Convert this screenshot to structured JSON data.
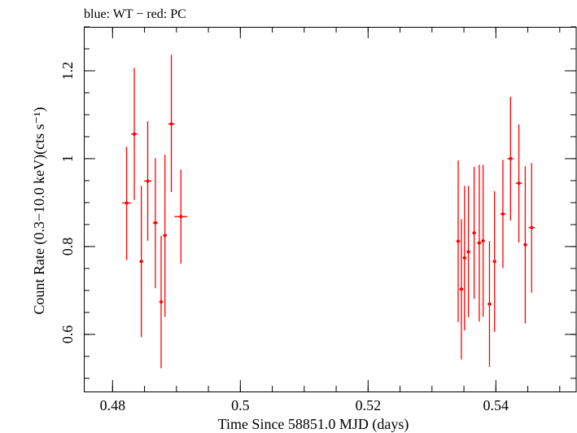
{
  "chart_data": {
    "type": "scatter",
    "title": "blue: WT − red: PC",
    "xlabel": "Time Since 58851.0 MJD (days)",
    "ylabel": "Count Rate (0.3−10.0 keV)(cts s⁻¹)",
    "xlim": [
      0.4755,
      0.5527
    ],
    "ylim": [
      0.47,
      1.3
    ],
    "xticks": [
      {
        "value": 0.48,
        "label": "0.48"
      },
      {
        "value": 0.5,
        "label": "0.5"
      },
      {
        "value": 0.52,
        "label": "0.52"
      },
      {
        "value": 0.54,
        "label": "0.54"
      }
    ],
    "yticks": [
      {
        "value": 0.6,
        "label": "0.6"
      },
      {
        "value": 0.8,
        "label": "0.8"
      },
      {
        "value": 1.0,
        "label": "1"
      },
      {
        "value": 1.2,
        "label": "1.2"
      }
    ],
    "x_minor_step": 0.005,
    "y_minor_step": 0.05,
    "grid": false,
    "colors": {
      "wt": "#0000ff",
      "pc": "#ff0000",
      "axes": "#000000"
    },
    "series": [
      {
        "color": "#ff0000",
        "points": [
          {
            "x": 0.4822,
            "xerr": 0.0007,
            "y": 0.899,
            "yerr_lo": 0.13,
            "yerr_hi": 0.128
          },
          {
            "x": 0.4834,
            "xerr": 0.0005,
            "y": 1.056,
            "yerr_lo": 0.15,
            "yerr_hi": 0.151
          },
          {
            "x": 0.4845,
            "xerr": 0.0003,
            "y": 0.766,
            "yerr_lo": 0.172,
            "yerr_hi": 0.172
          },
          {
            "x": 0.4855,
            "xerr": 0.0006,
            "y": 0.949,
            "yerr_lo": 0.136,
            "yerr_hi": 0.136
          },
          {
            "x": 0.4867,
            "xerr": 0.0004,
            "y": 0.854,
            "yerr_lo": 0.149,
            "yerr_hi": 0.147
          },
          {
            "x": 0.4876,
            "xerr": 0.0003,
            "y": 0.674,
            "yerr_lo": 0.151,
            "yerr_hi": 0.15
          },
          {
            "x": 0.4882,
            "xerr": 0.0003,
            "y": 0.825,
            "yerr_lo": 0.185,
            "yerr_hi": 0.184
          },
          {
            "x": 0.4892,
            "xerr": 0.0005,
            "y": 1.079,
            "yerr_lo": 0.155,
            "yerr_hi": 0.157
          },
          {
            "x": 0.4907,
            "xerr": 0.001,
            "y": 0.868,
            "yerr_lo": 0.107,
            "yerr_hi": 0.107
          },
          {
            "x": 0.5341,
            "xerr": 0.0003,
            "y": 0.812,
            "yerr_lo": 0.184,
            "yerr_hi": 0.184
          },
          {
            "x": 0.5346,
            "xerr": 0.0003,
            "y": 0.703,
            "yerr_lo": 0.16,
            "yerr_hi": 0.159
          },
          {
            "x": 0.5351,
            "xerr": 0.0003,
            "y": 0.774,
            "yerr_lo": 0.165,
            "yerr_hi": 0.164
          },
          {
            "x": 0.5357,
            "xerr": 0.0003,
            "y": 0.788,
            "yerr_lo": 0.149,
            "yerr_hi": 0.15
          },
          {
            "x": 0.5366,
            "xerr": 0.0003,
            "y": 0.831,
            "yerr_lo": 0.15,
            "yerr_hi": 0.15
          },
          {
            "x": 0.5374,
            "xerr": 0.0003,
            "y": 0.808,
            "yerr_lo": 0.179,
            "yerr_hi": 0.178
          },
          {
            "x": 0.538,
            "xerr": 0.0003,
            "y": 0.813,
            "yerr_lo": 0.173,
            "yerr_hi": 0.173
          },
          {
            "x": 0.539,
            "xerr": 0.0003,
            "y": 0.669,
            "yerr_lo": 0.143,
            "yerr_hi": 0.143
          },
          {
            "x": 0.5398,
            "xerr": 0.0003,
            "y": 0.766,
            "yerr_lo": 0.16,
            "yerr_hi": 0.16
          },
          {
            "x": 0.5411,
            "xerr": 0.0004,
            "y": 0.874,
            "yerr_lo": 0.123,
            "yerr_hi": 0.123
          },
          {
            "x": 0.5423,
            "xerr": 0.0005,
            "y": 1.0,
            "yerr_lo": 0.141,
            "yerr_hi": 0.141
          },
          {
            "x": 0.5436,
            "xerr": 0.0005,
            "y": 0.944,
            "yerr_lo": 0.135,
            "yerr_hi": 0.134
          },
          {
            "x": 0.5446,
            "xerr": 0.0003,
            "y": 0.804,
            "yerr_lo": 0.179,
            "yerr_hi": 0.179
          },
          {
            "x": 0.5456,
            "xerr": 0.0005,
            "y": 0.843,
            "yerr_lo": 0.148,
            "yerr_hi": 0.147
          }
        ]
      }
    ]
  }
}
